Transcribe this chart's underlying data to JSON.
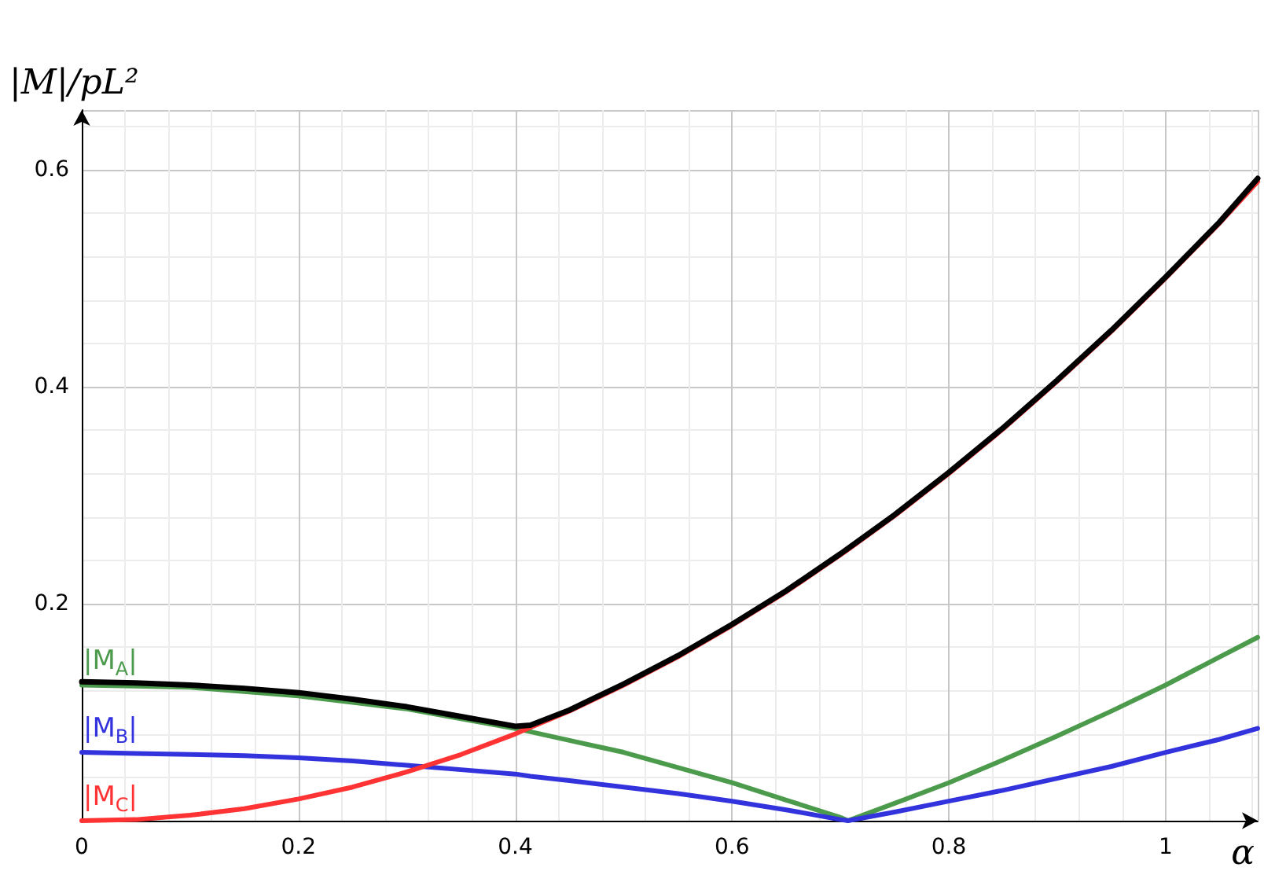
{
  "chart_data": {
    "type": "line",
    "xlabel": "α",
    "ylabel": "|M|/pL²",
    "x": [
      0,
      0.05,
      0.1,
      0.15,
      0.2,
      0.25,
      0.3,
      0.35,
      0.4,
      0.414,
      0.45,
      0.5,
      0.55,
      0.6,
      0.65,
      0.7,
      0.707,
      0.75,
      0.8,
      0.85,
      0.9,
      0.95,
      1,
      1.05,
      1.085
    ],
    "series": [
      {
        "color": "#000000",
        "values": [
          0.128,
          0.127,
          0.125,
          0.122,
          0.118,
          0.112,
          0.105,
          0.096,
          0.087,
          0.088,
          0.102,
          0.126,
          0.152,
          0.181,
          0.212,
          0.246,
          0.251,
          0.282,
          0.321,
          0.362,
          0.406,
          0.452,
          0.501,
          0.552,
          0.592
        ]
      },
      {
        "name": "|M$_{A}$|",
        "color": "#4c9a4c",
        "values": [
          0.125,
          0.124,
          0.123,
          0.119,
          0.115,
          0.109,
          0.103,
          0.094,
          0.085,
          0.082,
          0.074,
          0.063,
          0.049,
          0.035,
          0.019,
          0.003,
          0,
          0.016,
          0.035,
          0.056,
          0.078,
          0.101,
          0.125,
          0.151,
          0.169
        ]
      },
      {
        "name": "|M$_{B}$|",
        "color": "#3333dd",
        "values": [
          0.063,
          0.062,
          0.061,
          0.06,
          0.058,
          0.055,
          0.051,
          0.047,
          0.043,
          0.041,
          0.037,
          0.031,
          0.025,
          0.018,
          0.01,
          0.001,
          0,
          0.008,
          0.018,
          0.028,
          0.039,
          0.05,
          0.063,
          0.075,
          0.085
        ]
      },
      {
        "name": "|M$_{C}$|",
        "color": "#ff3333",
        "values": [
          0,
          0.001,
          0.005,
          0.011,
          0.02,
          0.031,
          0.045,
          0.061,
          0.08,
          0.086,
          0.101,
          0.125,
          0.151,
          0.18,
          0.211,
          0.245,
          0.25,
          0.281,
          0.32,
          0.361,
          0.405,
          0.451,
          0.5,
          0.551,
          0.589
        ]
      }
    ],
    "xlim": [
      0,
      1.085
    ],
    "ylim": [
      0,
      0.655
    ],
    "xticks": [
      0,
      0.2,
      0.4,
      0.6,
      0.8,
      1
    ],
    "yticks": [
      0.2,
      0.4,
      0.6
    ],
    "grid": true,
    "legend": false,
    "marker": "none",
    "line_style": "solid"
  }
}
